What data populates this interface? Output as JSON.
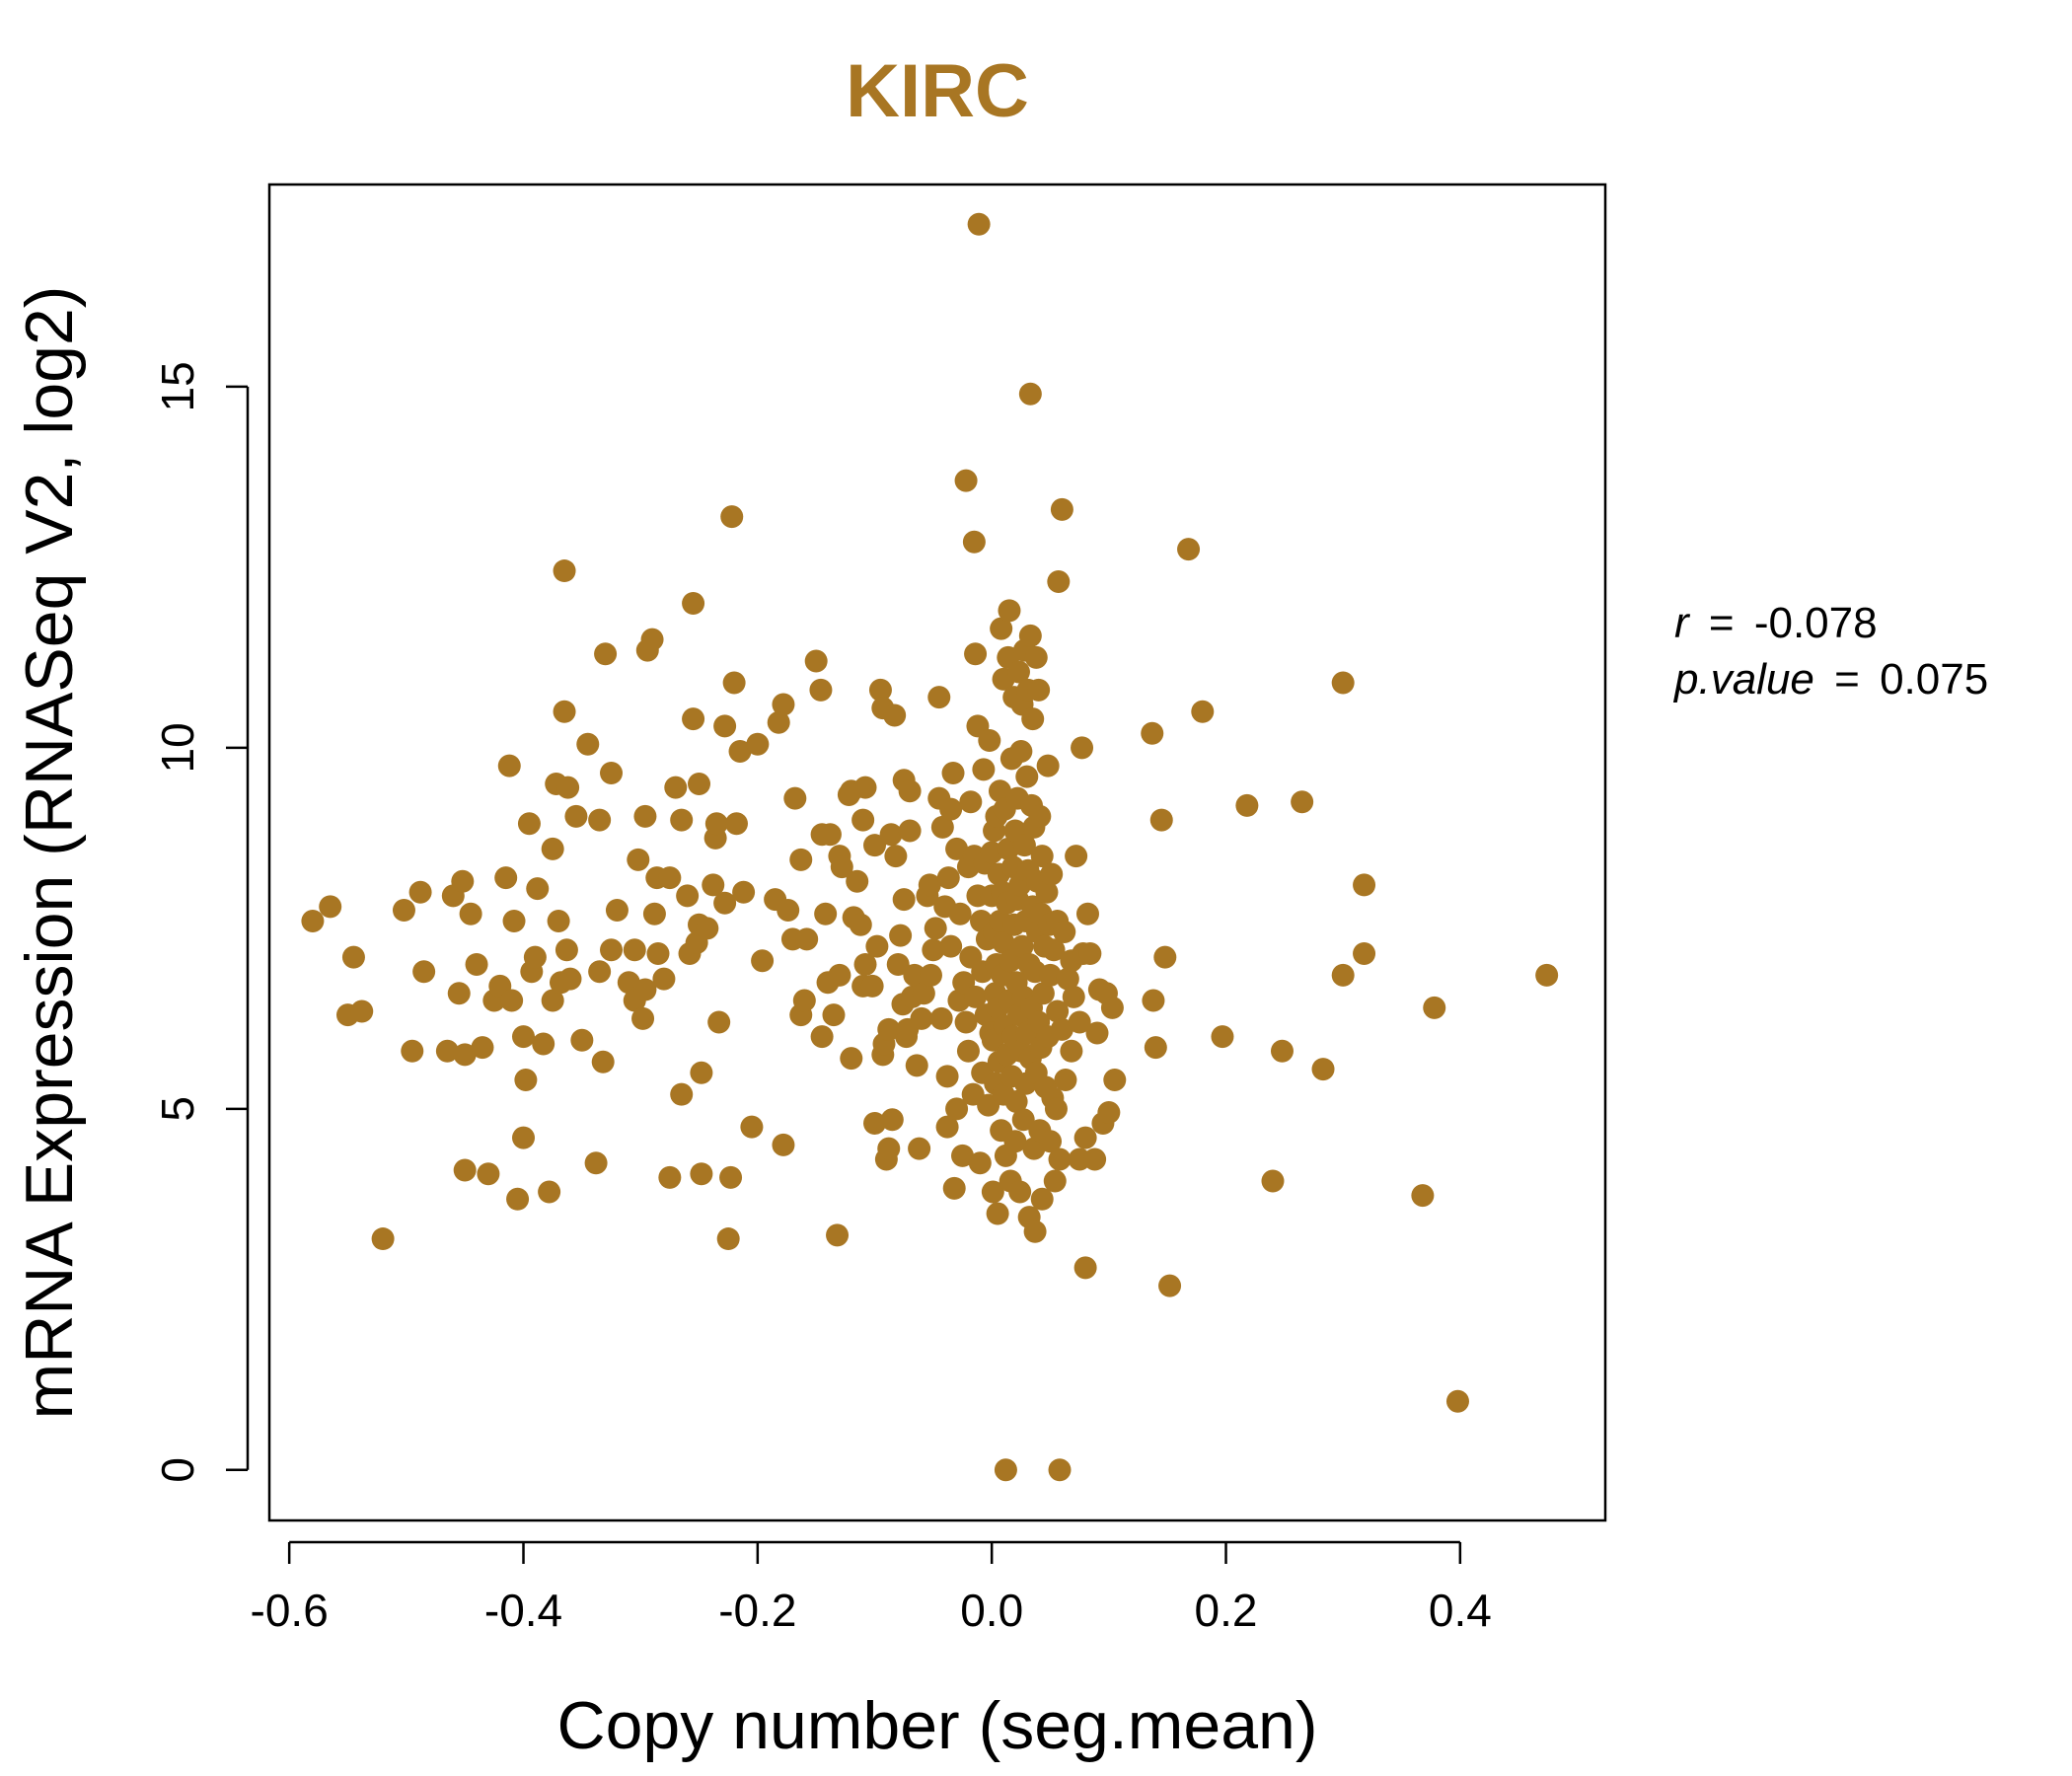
{
  "chart_data": {
    "type": "scatter",
    "title": "KIRC",
    "xlabel": "Copy number (seg.mean)",
    "ylabel": "mRNA Expression (RNASeq V2, log2)",
    "xlim": [
      -0.617,
      0.524
    ],
    "ylim": [
      -0.7,
      17.8
    ],
    "x_ticks": [
      "-0.6",
      "-0.4",
      "-0.2",
      "0.0",
      "0.2",
      "0.4"
    ],
    "y_ticks": [
      "0",
      "5",
      "10",
      "15"
    ],
    "grid": false,
    "color": "#A87623",
    "annotation": {
      "r_label": "r",
      "r_value": "-0.078",
      "p_label": "p.value",
      "p_value": "0.075"
    },
    "points": [
      [
        -0.58,
        7.6
      ],
      [
        -0.565,
        7.8
      ],
      [
        -0.55,
        6.3
      ],
      [
        -0.545,
        7.1
      ],
      [
        -0.538,
        6.35
      ],
      [
        -0.52,
        3.2
      ],
      [
        -0.502,
        7.75
      ],
      [
        -0.495,
        5.8
      ],
      [
        -0.488,
        8.0
      ],
      [
        -0.485,
        6.9
      ],
      [
        -0.465,
        5.8
      ],
      [
        -0.46,
        7.95
      ],
      [
        -0.455,
        6.6
      ],
      [
        -0.452,
        8.15
      ],
      [
        -0.45,
        5.75
      ],
      [
        -0.45,
        4.15
      ],
      [
        -0.445,
        7.7
      ],
      [
        -0.44,
        7.0
      ],
      [
        -0.435,
        5.85
      ],
      [
        -0.43,
        4.1
      ],
      [
        -0.425,
        6.5
      ],
      [
        -0.42,
        6.7
      ],
      [
        -0.415,
        8.2
      ],
      [
        -0.412,
        9.75
      ],
      [
        -0.41,
        6.5
      ],
      [
        -0.408,
        7.6
      ],
      [
        -0.405,
        3.75
      ],
      [
        -0.4,
        6.0
      ],
      [
        -0.4,
        4.6
      ],
      [
        -0.398,
        5.4
      ],
      [
        -0.395,
        8.95
      ],
      [
        -0.393,
        6.9
      ],
      [
        -0.39,
        7.1
      ],
      [
        -0.388,
        8.05
      ],
      [
        -0.383,
        5.9
      ],
      [
        -0.378,
        3.85
      ],
      [
        -0.375,
        6.5
      ],
      [
        -0.375,
        8.6
      ],
      [
        -0.372,
        9.5
      ],
      [
        -0.37,
        7.6
      ],
      [
        -0.368,
        6.75
      ],
      [
        -0.365,
        10.5
      ],
      [
        -0.365,
        12.45
      ],
      [
        -0.363,
        7.2
      ],
      [
        -0.362,
        9.45
      ],
      [
        -0.36,
        6.8
      ],
      [
        -0.355,
        9.05
      ],
      [
        -0.35,
        5.95
      ],
      [
        -0.345,
        10.05
      ],
      [
        -0.338,
        4.25
      ],
      [
        -0.335,
        9.0
      ],
      [
        -0.335,
        6.9
      ],
      [
        -0.332,
        5.65
      ],
      [
        -0.33,
        11.3
      ],
      [
        -0.325,
        7.2
      ],
      [
        -0.325,
        9.65
      ],
      [
        -0.32,
        7.75
      ],
      [
        -0.31,
        6.75
      ],
      [
        -0.305,
        6.5
      ],
      [
        -0.305,
        7.2
      ],
      [
        -0.302,
        8.45
      ],
      [
        -0.298,
        6.25
      ],
      [
        -0.296,
        6.65
      ],
      [
        -0.296,
        9.05
      ],
      [
        -0.294,
        11.35
      ],
      [
        -0.29,
        11.5
      ],
      [
        -0.288,
        7.7
      ],
      [
        -0.286,
        8.2
      ],
      [
        -0.285,
        7.15
      ],
      [
        -0.28,
        6.8
      ],
      [
        -0.275,
        8.2
      ],
      [
        -0.275,
        4.05
      ],
      [
        -0.27,
        9.45
      ],
      [
        -0.265,
        5.2
      ],
      [
        -0.265,
        9.0
      ],
      [
        -0.26,
        7.95
      ],
      [
        -0.258,
        7.15
      ],
      [
        -0.255,
        12.0
      ],
      [
        -0.255,
        10.4
      ],
      [
        -0.252,
        7.3
      ],
      [
        -0.25,
        9.5
      ],
      [
        -0.25,
        7.55
      ],
      [
        -0.248,
        5.5
      ],
      [
        -0.248,
        4.1
      ],
      [
        -0.243,
        7.5
      ],
      [
        -0.238,
        8.1
      ],
      [
        -0.236,
        8.75
      ],
      [
        -0.235,
        8.95
      ],
      [
        -0.233,
        6.2
      ],
      [
        -0.228,
        10.3
      ],
      [
        -0.228,
        7.85
      ],
      [
        -0.225,
        3.2
      ],
      [
        -0.223,
        4.05
      ],
      [
        -0.222,
        13.2
      ],
      [
        -0.22,
        10.9
      ],
      [
        -0.218,
        8.95
      ],
      [
        -0.215,
        9.95
      ],
      [
        -0.212,
        8.0
      ],
      [
        -0.205,
        4.75
      ],
      [
        -0.2,
        10.05
      ],
      [
        -0.196,
        7.05
      ],
      [
        -0.185,
        7.9
      ],
      [
        -0.182,
        10.35
      ],
      [
        -0.178,
        4.5
      ],
      [
        -0.178,
        10.6
      ],
      [
        -0.174,
        7.75
      ],
      [
        -0.17,
        7.35
      ],
      [
        -0.168,
        9.3
      ],
      [
        -0.163,
        8.45
      ],
      [
        -0.163,
        6.3
      ],
      [
        -0.16,
        6.5
      ],
      [
        -0.158,
        7.35
      ],
      [
        -0.15,
        11.2
      ],
      [
        -0.146,
        10.8
      ],
      [
        -0.145,
        6.0
      ],
      [
        -0.145,
        8.8
      ],
      [
        -0.142,
        7.7
      ],
      [
        -0.14,
        6.75
      ],
      [
        -0.138,
        8.8
      ],
      [
        -0.135,
        6.3
      ],
      [
        -0.132,
        3.25
      ],
      [
        -0.13,
        6.85
      ],
      [
        -0.13,
        8.5
      ],
      [
        -0.128,
        8.35
      ],
      [
        -0.122,
        9.35
      ],
      [
        -0.12,
        9.4
      ],
      [
        -0.12,
        5.7
      ],
      [
        -0.118,
        7.65
      ],
      [
        -0.115,
        8.15
      ],
      [
        -0.112,
        7.55
      ],
      [
        -0.11,
        6.7
      ],
      [
        -0.11,
        9.0
      ],
      [
        -0.108,
        9.45
      ],
      [
        -0.108,
        7.0
      ],
      [
        -0.102,
        6.7
      ],
      [
        -0.1,
        4.8
      ],
      [
        -0.1,
        8.65
      ],
      [
        -0.098,
        7.25
      ],
      [
        -0.095,
        10.8
      ],
      [
        -0.093,
        5.75
      ],
      [
        -0.093,
        10.55
      ],
      [
        -0.092,
        5.9
      ],
      [
        -0.09,
        4.3
      ],
      [
        -0.088,
        4.45
      ],
      [
        -0.088,
        6.1
      ],
      [
        -0.086,
        8.8
      ],
      [
        -0.085,
        4.85
      ],
      [
        -0.083,
        10.45
      ],
      [
        -0.082,
        8.5
      ],
      [
        -0.08,
        7.0
      ],
      [
        -0.078,
        7.4
      ],
      [
        -0.076,
        6.45
      ],
      [
        -0.075,
        9.55
      ],
      [
        -0.075,
        7.9
      ],
      [
        -0.073,
        6.0
      ],
      [
        -0.072,
        6.1
      ],
      [
        -0.07,
        9.4
      ],
      [
        -0.07,
        8.85
      ],
      [
        -0.068,
        6.55
      ],
      [
        -0.066,
        6.85
      ],
      [
        -0.064,
        5.6
      ],
      [
        -0.062,
        4.45
      ],
      [
        -0.06,
        6.25
      ],
      [
        -0.058,
        6.6
      ],
      [
        -0.055,
        7.95
      ],
      [
        -0.053,
        8.1
      ],
      [
        -0.052,
        6.85
      ],
      [
        -0.05,
        7.2
      ],
      [
        -0.048,
        7.5
      ],
      [
        -0.045,
        10.7
      ],
      [
        -0.045,
        9.3
      ],
      [
        -0.043,
        6.25
      ],
      [
        -0.042,
        8.9
      ],
      [
        -0.04,
        7.8
      ],
      [
        -0.038,
        5.45
      ],
      [
        -0.038,
        4.75
      ],
      [
        -0.037,
        8.2
      ],
      [
        -0.035,
        9.15
      ],
      [
        -0.035,
        7.25
      ],
      [
        -0.033,
        9.65
      ],
      [
        -0.032,
        3.9
      ],
      [
        -0.03,
        8.6
      ],
      [
        -0.03,
        5.0
      ],
      [
        -0.028,
        6.5
      ],
      [
        -0.027,
        7.7
      ],
      [
        -0.025,
        4.35
      ],
      [
        -0.024,
        6.75
      ],
      [
        -0.022,
        13.7
      ],
      [
        -0.022,
        6.2
      ],
      [
        -0.02,
        8.35
      ],
      [
        -0.02,
        5.8
      ],
      [
        -0.018,
        9.25
      ],
      [
        -0.018,
        7.1
      ],
      [
        -0.016,
        5.2
      ],
      [
        -0.015,
        8.5
      ],
      [
        -0.015,
        12.85
      ],
      [
        -0.014,
        11.3
      ],
      [
        -0.014,
        6.55
      ],
      [
        -0.012,
        10.3
      ],
      [
        -0.012,
        7.95
      ],
      [
        -0.011,
        17.25
      ],
      [
        -0.01,
        4.25
      ],
      [
        -0.009,
        7.6
      ],
      [
        -0.008,
        6.9
      ],
      [
        -0.008,
        5.5
      ],
      [
        -0.007,
        9.7
      ],
      [
        -0.006,
        8.4
      ],
      [
        -0.005,
        6.3
      ],
      [
        -0.004,
        7.35
      ],
      [
        -0.003,
        5.05
      ],
      [
        -0.002,
        10.1
      ],
      [
        -0.001,
        6.05
      ],
      [
        0.0,
        7.95
      ],
      [
        0.0,
        8.55
      ],
      [
        0.001,
        5.95
      ],
      [
        0.001,
        3.85
      ],
      [
        0.002,
        7.45
      ],
      [
        0.002,
        8.85
      ],
      [
        0.003,
        6.6
      ],
      [
        0.003,
        5.35
      ],
      [
        0.004,
        9.05
      ],
      [
        0.004,
        7.0
      ],
      [
        0.005,
        3.55
      ],
      [
        0.005,
        6.4
      ],
      [
        0.006,
        8.25
      ],
      [
        0.006,
        5.65
      ],
      [
        0.007,
        9.4
      ],
      [
        0.007,
        7.6
      ],
      [
        0.008,
        11.65
      ],
      [
        0.008,
        4.7
      ],
      [
        0.009,
        6.85
      ],
      [
        0.009,
        8.0
      ],
      [
        0.01,
        10.95
      ],
      [
        0.01,
        5.2
      ],
      [
        0.01,
        7.3
      ],
      [
        0.011,
        6.15
      ],
      [
        0.011,
        9.15
      ],
      [
        0.012,
        4.35
      ],
      [
        0.012,
        0.0
      ],
      [
        0.013,
        7.85
      ],
      [
        0.013,
        5.75
      ],
      [
        0.014,
        11.25
      ],
      [
        0.014,
        8.6
      ],
      [
        0.015,
        6.5
      ],
      [
        0.015,
        11.9
      ],
      [
        0.016,
        7.05
      ],
      [
        0.016,
        4.0
      ],
      [
        0.017,
        9.85
      ],
      [
        0.017,
        5.45
      ],
      [
        0.018,
        8.35
      ],
      [
        0.018,
        6.0
      ],
      [
        0.019,
        10.7
      ],
      [
        0.019,
        7.55
      ],
      [
        0.02,
        4.55
      ],
      [
        0.02,
        8.85
      ],
      [
        0.021,
        6.75
      ],
      [
        0.021,
        5.1
      ],
      [
        0.022,
        9.3
      ],
      [
        0.022,
        7.9
      ],
      [
        0.023,
        11.05
      ],
      [
        0.023,
        6.3
      ],
      [
        0.024,
        3.85
      ],
      [
        0.024,
        8.1
      ],
      [
        0.025,
        5.8
      ],
      [
        0.025,
        9.95
      ],
      [
        0.026,
        7.25
      ],
      [
        0.026,
        10.6
      ],
      [
        0.027,
        6.55
      ],
      [
        0.027,
        4.85
      ],
      [
        0.028,
        8.65
      ],
      [
        0.028,
        11.35
      ],
      [
        0.029,
        7.6
      ],
      [
        0.029,
        5.35
      ],
      [
        0.03,
        9.6
      ],
      [
        0.03,
        6.05
      ],
      [
        0.031,
        10.8
      ],
      [
        0.031,
        8.3
      ],
      [
        0.032,
        3.5
      ],
      [
        0.032,
        7.0
      ],
      [
        0.033,
        11.55
      ],
      [
        0.033,
        14.9
      ],
      [
        0.033,
        5.7
      ],
      [
        0.034,
        9.2
      ],
      [
        0.034,
        6.4
      ],
      [
        0.035,
        10.4
      ],
      [
        0.035,
        7.8
      ],
      [
        0.036,
        4.45
      ],
      [
        0.036,
        8.9
      ],
      [
        0.037,
        3.3
      ],
      [
        0.037,
        6.9
      ],
      [
        0.038,
        11.25
      ],
      [
        0.038,
        5.5
      ],
      [
        0.039,
        8.15
      ],
      [
        0.039,
        7.45
      ],
      [
        0.04,
        10.8
      ],
      [
        0.04,
        6.2
      ],
      [
        0.041,
        9.05
      ],
      [
        0.041,
        4.7
      ],
      [
        0.042,
        7.7
      ],
      [
        0.042,
        5.85
      ],
      [
        0.043,
        3.75
      ],
      [
        0.043,
        8.5
      ],
      [
        0.044,
        6.6
      ],
      [
        0.045,
        7.25
      ],
      [
        0.046,
        5.3
      ],
      [
        0.047,
        8.0
      ],
      [
        0.048,
        9.75
      ],
      [
        0.048,
        6.0
      ],
      [
        0.049,
        7.55
      ],
      [
        0.05,
        4.55
      ],
      [
        0.05,
        6.85
      ],
      [
        0.051,
        8.25
      ],
      [
        0.052,
        5.15
      ],
      [
        0.053,
        7.2
      ],
      [
        0.054,
        4.0
      ],
      [
        0.055,
        5.0
      ],
      [
        0.056,
        6.35
      ],
      [
        0.056,
        7.6
      ],
      [
        0.057,
        12.3
      ],
      [
        0.058,
        4.3
      ],
      [
        0.058,
        0.0
      ],
      [
        0.06,
        13.3
      ],
      [
        0.06,
        6.1
      ],
      [
        0.062,
        7.45
      ],
      [
        0.063,
        5.4
      ],
      [
        0.065,
        6.8
      ],
      [
        0.068,
        5.8
      ],
      [
        0.068,
        7.05
      ],
      [
        0.07,
        6.55
      ],
      [
        0.072,
        8.5
      ],
      [
        0.075,
        4.3
      ],
      [
        0.075,
        6.2
      ],
      [
        0.077,
        10.0
      ],
      [
        0.078,
        7.15
      ],
      [
        0.08,
        2.8
      ],
      [
        0.08,
        4.6
      ],
      [
        0.082,
        7.7
      ],
      [
        0.084,
        7.15
      ],
      [
        0.088,
        4.3
      ],
      [
        0.09,
        6.05
      ],
      [
        0.092,
        6.65
      ],
      [
        0.095,
        4.8
      ],
      [
        0.098,
        6.6
      ],
      [
        0.1,
        4.95
      ],
      [
        0.103,
        6.4
      ],
      [
        0.105,
        5.4
      ],
      [
        0.137,
        10.2
      ],
      [
        0.138,
        6.5
      ],
      [
        0.14,
        5.85
      ],
      [
        0.145,
        9.0
      ],
      [
        0.148,
        7.1
      ],
      [
        0.152,
        2.55
      ],
      [
        0.168,
        12.75
      ],
      [
        0.18,
        10.5
      ],
      [
        0.197,
        6.0
      ],
      [
        0.218,
        9.2
      ],
      [
        0.24,
        4.0
      ],
      [
        0.248,
        5.8
      ],
      [
        0.265,
        9.25
      ],
      [
        0.283,
        5.55
      ],
      [
        0.3,
        6.85
      ],
      [
        0.3,
        10.9
      ],
      [
        0.318,
        8.1
      ],
      [
        0.318,
        7.15
      ],
      [
        0.368,
        3.8
      ],
      [
        0.378,
        6.4
      ],
      [
        0.398,
        0.95
      ],
      [
        0.474,
        6.85
      ]
    ]
  }
}
